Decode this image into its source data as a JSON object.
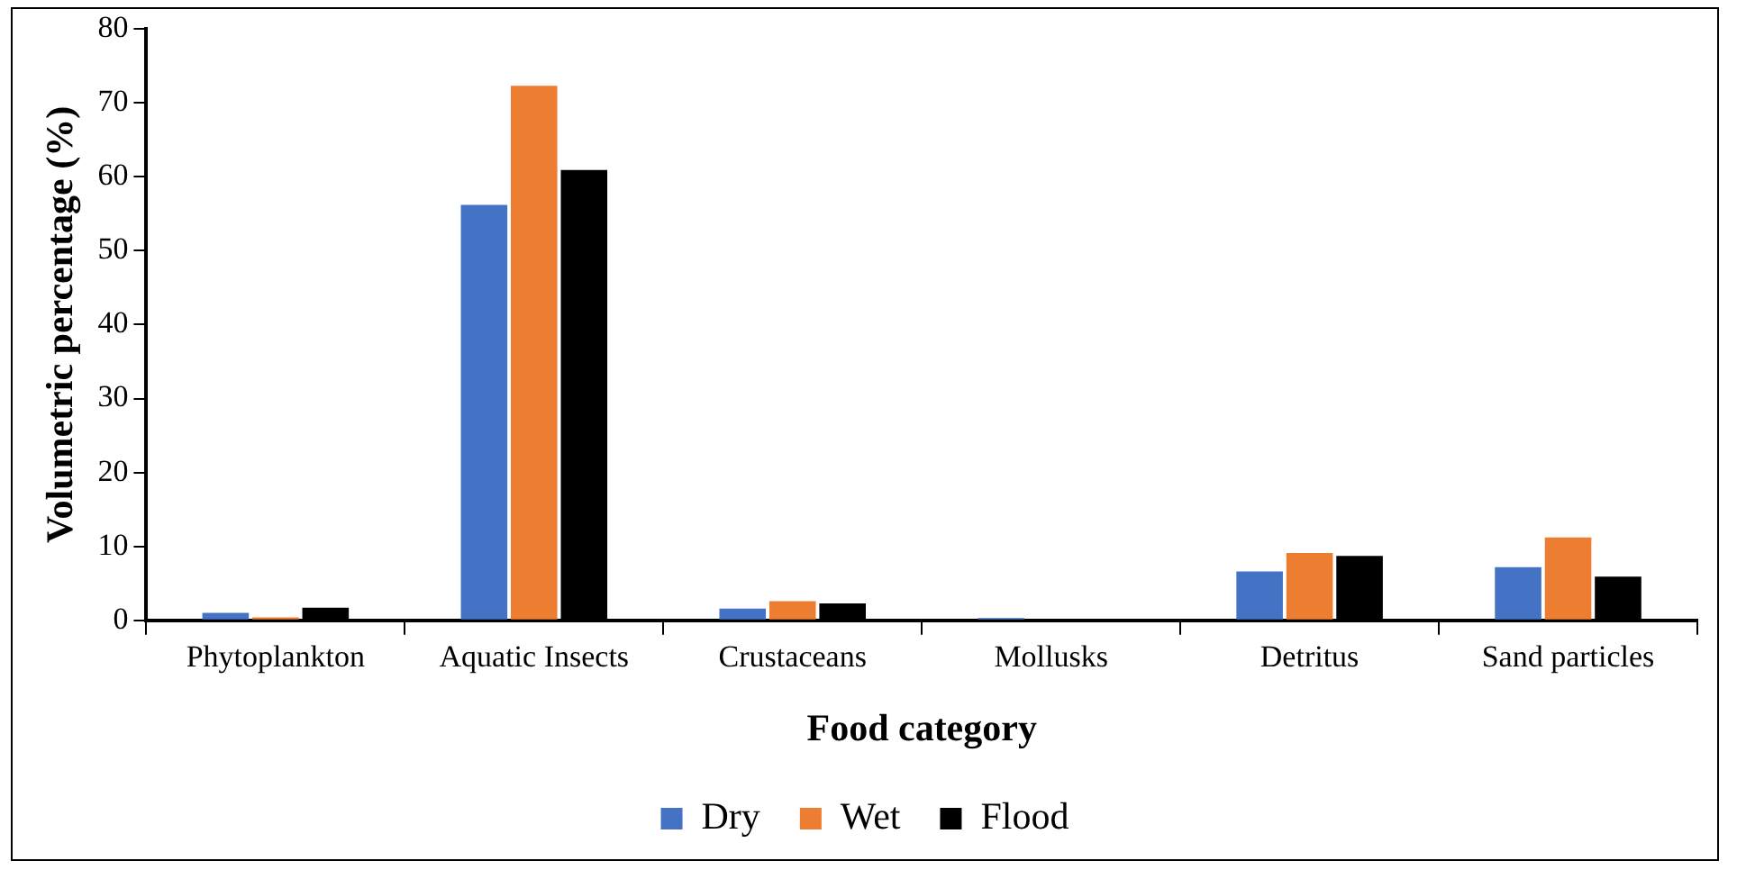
{
  "chart_data": {
    "type": "bar",
    "xlabel": "Food category",
    "ylabel": "Volumetric percentage (%)",
    "categories": [
      "Phytoplankton",
      "Aquatic Insects",
      "Crustaceans",
      "Mollusks",
      "Detritus",
      "Sand particles"
    ],
    "series": [
      {
        "name": "Dry",
        "color": "#4472c4",
        "values": [
          1.0,
          56.2,
          1.6,
          0.3,
          6.6,
          7.2
        ]
      },
      {
        "name": "Wet",
        "color": "#ed7d31",
        "values": [
          0.4,
          72.3,
          2.6,
          0,
          9.1,
          11.2
        ]
      },
      {
        "name": "Flood",
        "color": "#000000",
        "values": [
          1.7,
          60.9,
          2.3,
          0,
          8.7,
          5.9
        ]
      }
    ],
    "ylim": [
      0,
      80
    ],
    "yticks": [
      0,
      10,
      20,
      30,
      40,
      50,
      60,
      70,
      80
    ],
    "grid": false,
    "legend": "bottom"
  }
}
